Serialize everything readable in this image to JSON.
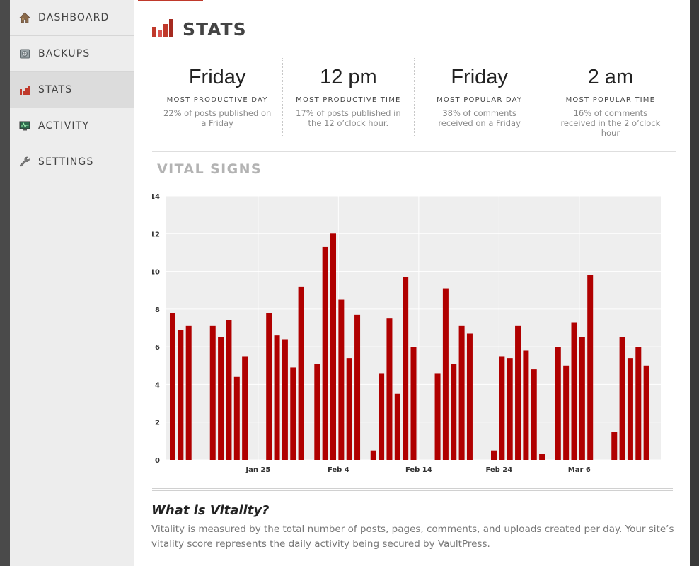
{
  "sidebar": {
    "items": [
      {
        "label": "DASHBOARD",
        "icon": "house-icon"
      },
      {
        "label": "BACKUPS",
        "icon": "vault-icon"
      },
      {
        "label": "STATS",
        "icon": "bar-chart-icon",
        "active": true
      },
      {
        "label": "ACTIVITY",
        "icon": "monitor-icon"
      },
      {
        "label": "SETTINGS",
        "icon": "wrench-icon"
      }
    ]
  },
  "header": {
    "title": "STATS",
    "icon": "bar-chart-icon"
  },
  "stats": [
    {
      "value": "Friday",
      "caption": "MOST PRODUCTIVE DAY",
      "desc": "22% of posts published on a Friday"
    },
    {
      "value": "12 pm",
      "caption": "MOST PRODUCTIVE TIME",
      "desc": "17% of posts published in the 12 o’clock hour."
    },
    {
      "value": "Friday",
      "caption": "MOST POPULAR DAY",
      "desc": "38% of comments received on a Friday"
    },
    {
      "value": "2 am",
      "caption": "MOST POPULAR TIME",
      "desc": "16% of comments received in the 2 o’clock hour"
    }
  ],
  "vital_signs": {
    "title": "VITAL SIGNS"
  },
  "chart_data": {
    "type": "bar",
    "title": "",
    "xlabel": "",
    "ylabel": "",
    "ylim": [
      0,
      14
    ],
    "yticks": [
      0,
      2,
      4,
      6,
      8,
      10,
      12,
      14
    ],
    "x_tick_labels": [
      {
        "label": "Jan 25",
        "day_index": 11
      },
      {
        "label": "Feb 4",
        "day_index": 21
      },
      {
        "label": "Feb 14",
        "day_index": 31
      },
      {
        "label": "Feb 24",
        "day_index": 41
      },
      {
        "label": "Mar 6",
        "day_index": 51
      }
    ],
    "grid": true,
    "bar_color": "#b00000",
    "plot_background": "#eeeeee",
    "values": [
      7.8,
      6.9,
      7.1,
      0,
      0,
      7.1,
      6.5,
      7.4,
      4.4,
      5.5,
      0,
      0,
      7.8,
      6.6,
      6.4,
      4.9,
      9.2,
      0,
      5.1,
      11.3,
      12.0,
      8.5,
      5.4,
      7.7,
      0,
      0.5,
      4.6,
      7.5,
      3.5,
      9.7,
      6.0,
      0,
      0,
      4.6,
      9.1,
      5.1,
      7.1,
      6.7,
      0,
      0,
      0.5,
      5.5,
      5.4,
      7.1,
      5.8,
      4.8,
      0.3,
      0,
      6.0,
      5.0,
      7.3,
      6.5,
      9.8,
      0,
      0,
      1.5,
      6.5,
      5.4,
      6.0,
      5.0
    ]
  },
  "vitality": {
    "heading": "What is Vitality?",
    "text": "Vitality is measured by the total number of posts, pages, comments, and uploads created per day. Your site’s vitality score represents the daily activity being secured by VaultPress."
  },
  "colors": {
    "accent": "#c0392b",
    "bar": "#b00000"
  }
}
